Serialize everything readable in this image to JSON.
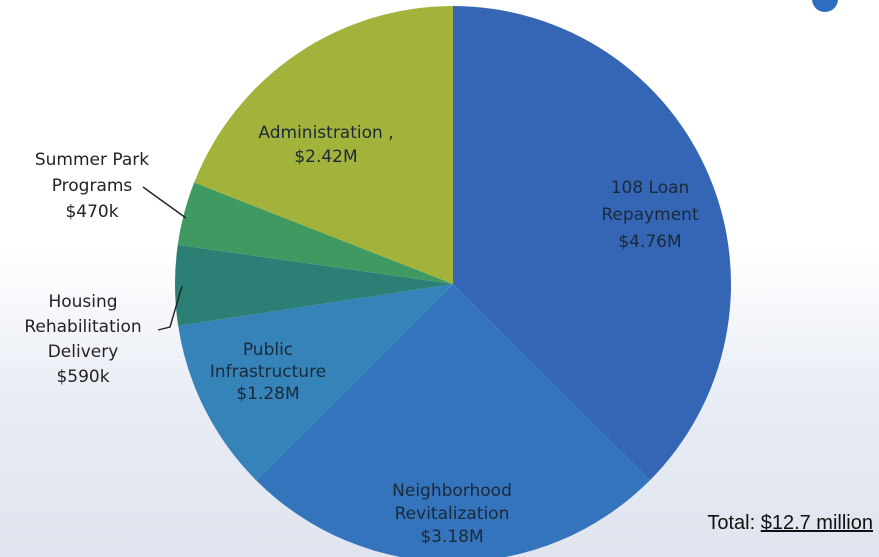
{
  "chart_data": {
    "type": "pie",
    "slices": [
      {
        "label_lines": [
          "108 Loan",
          "Repayment",
          "$4.76M"
        ],
        "value": 4.76,
        "color": "#3566b5",
        "label_position": "inside"
      },
      {
        "label_lines": [
          "Neighborhood",
          "Revitalization",
          "$3.18M"
        ],
        "value": 3.18,
        "color": "#3474bc",
        "label_position": "inside"
      },
      {
        "label_lines": [
          "Public",
          "Infrastructure",
          "$1.28M"
        ],
        "value": 1.28,
        "color": "#3683b9",
        "label_position": "inside"
      },
      {
        "label_lines": [
          "Housing",
          "Rehabilitation",
          "Delivery",
          "$590k"
        ],
        "value": 0.59,
        "color": "#2c7f74",
        "label_position": "outside"
      },
      {
        "label_lines": [
          "Summer Park",
          "Programs",
          "$470k"
        ],
        "value": 0.47,
        "color": "#3f9a62",
        "label_position": "outside"
      },
      {
        "label_lines": [
          "Administration ,",
          "$2.42M"
        ],
        "value": 2.42,
        "color": "#a3b23a",
        "label_position": "inside"
      }
    ],
    "start_angle": "12 o'clock",
    "direction": "clockwise"
  },
  "total": {
    "label": "Total:",
    "value": "$12.7 million"
  }
}
